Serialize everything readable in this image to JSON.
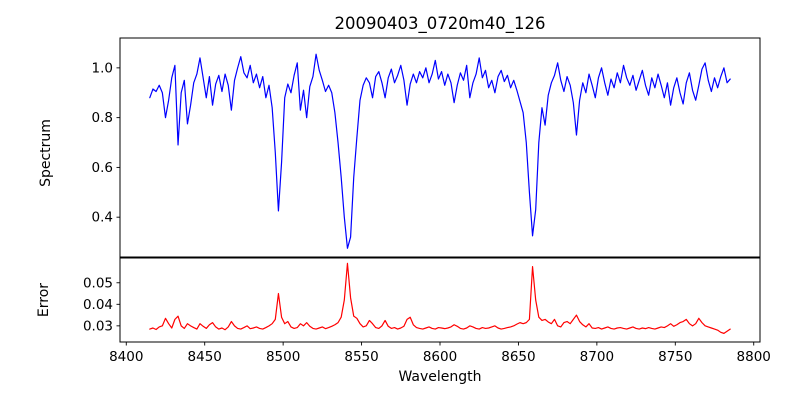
{
  "chart_data": {
    "type": "line",
    "title": "20090403_0720m40_126",
    "xlabel": "Wavelength",
    "grid": false,
    "legend": "none",
    "background": "#ffffff",
    "axis_color": "#000000",
    "xlim": [
      8396,
      8804
    ],
    "xticks": [
      {
        "v": 8400,
        "label": "8400"
      },
      {
        "v": 8450,
        "label": "8450"
      },
      {
        "v": 8500,
        "label": "8500"
      },
      {
        "v": 8550,
        "label": "8550"
      },
      {
        "v": 8600,
        "label": "8600"
      },
      {
        "v": 8650,
        "label": "8650"
      },
      {
        "v": 8700,
        "label": "8700"
      },
      {
        "v": 8750,
        "label": "8750"
      },
      {
        "v": 8800,
        "label": "8800"
      }
    ],
    "absorption_lines": [
      {
        "wavelength": 8497,
        "min_flux": 0.425,
        "error_peak": 0.045
      },
      {
        "wavelength": 8541,
        "min_flux": 0.275,
        "error_peak": 0.059
      },
      {
        "wavelength": 8659,
        "min_flux": 0.325,
        "error_peak": 0.0575
      }
    ],
    "panels": [
      {
        "ylabel": "Spectrum",
        "ylim": [
          0.24,
          1.12
        ],
        "yticks": [
          {
            "v": 0.4,
            "label": "0.4"
          },
          {
            "v": 0.6,
            "label": "0.6"
          },
          {
            "v": 0.8,
            "label": "0.8"
          },
          {
            "v": 1.0,
            "label": "1.0"
          }
        ],
        "axes_rect": [
          120,
          38,
          640,
          219
        ],
        "series": {
          "name": "spectrum",
          "color": "#0000ff",
          "x_start": 8415,
          "x_step": 2,
          "values": [
            0.88,
            0.915,
            0.905,
            0.93,
            0.9,
            0.8,
            0.87,
            0.96,
            1.01,
            0.69,
            0.9,
            0.95,
            0.775,
            0.85,
            0.94,
            0.975,
            1.04,
            0.96,
            0.88,
            0.965,
            0.85,
            0.935,
            0.97,
            0.905,
            0.975,
            0.93,
            0.83,
            0.95,
            1.0,
            1.045,
            0.98,
            0.96,
            1.01,
            0.94,
            0.975,
            0.92,
            0.965,
            0.88,
            0.93,
            0.84,
            0.66,
            0.425,
            0.62,
            0.88,
            0.935,
            0.9,
            0.97,
            1.02,
            0.83,
            0.91,
            0.8,
            0.925,
            0.965,
            1.055,
            0.99,
            0.95,
            0.905,
            0.93,
            0.9,
            0.82,
            0.7,
            0.56,
            0.4,
            0.275,
            0.32,
            0.56,
            0.72,
            0.87,
            0.93,
            0.96,
            0.94,
            0.88,
            0.965,
            0.985,
            0.94,
            0.88,
            0.96,
            0.995,
            0.94,
            0.97,
            1.01,
            0.95,
            0.85,
            0.935,
            0.975,
            0.94,
            0.985,
            0.96,
            1.0,
            0.94,
            0.975,
            1.03,
            0.955,
            0.985,
            0.93,
            0.975,
            0.94,
            0.86,
            0.93,
            0.98,
            0.95,
            1.01,
            0.88,
            0.94,
            0.975,
            1.04,
            0.96,
            0.99,
            0.92,
            0.95,
            0.9,
            0.965,
            0.99,
            0.945,
            0.97,
            0.92,
            0.95,
            0.91,
            0.865,
            0.82,
            0.7,
            0.5,
            0.325,
            0.43,
            0.7,
            0.84,
            0.77,
            0.89,
            0.94,
            0.97,
            1.02,
            0.95,
            0.905,
            0.965,
            0.93,
            0.86,
            0.73,
            0.87,
            0.94,
            0.9,
            0.975,
            0.93,
            0.88,
            0.96,
            1.0,
            0.94,
            0.89,
            0.955,
            0.92,
            0.98,
            0.94,
            1.01,
            0.96,
            0.93,
            0.97,
            0.91,
            0.95,
            0.99,
            0.93,
            0.89,
            0.96,
            0.92,
            0.975,
            0.93,
            0.88,
            0.94,
            0.85,
            0.92,
            0.96,
            0.9,
            0.855,
            0.94,
            0.98,
            0.91,
            0.87,
            0.93,
            0.995,
            1.02,
            0.95,
            0.905,
            0.96,
            0.92,
            0.965,
            1.0,
            0.94,
            0.955
          ]
        }
      },
      {
        "ylabel": "Error",
        "ylim": [
          0.0225,
          0.0615
        ],
        "yticks": [
          {
            "v": 0.03,
            "label": "0.03"
          },
          {
            "v": 0.04,
            "label": "0.04"
          },
          {
            "v": 0.05,
            "label": "0.05"
          }
        ],
        "axes_rect": [
          120,
          258,
          640,
          84
        ],
        "series": {
          "name": "error",
          "color": "#ff0000",
          "x_start": 8415,
          "x_step": 2,
          "values": [
            0.0285,
            0.029,
            0.0283,
            0.0295,
            0.03,
            0.0335,
            0.031,
            0.029,
            0.033,
            0.0345,
            0.03,
            0.0288,
            0.031,
            0.03,
            0.0292,
            0.0285,
            0.031,
            0.0298,
            0.0288,
            0.0305,
            0.0315,
            0.0295,
            0.0285,
            0.029,
            0.0282,
            0.0295,
            0.032,
            0.03,
            0.0288,
            0.0285,
            0.0292,
            0.03,
            0.0287,
            0.029,
            0.0295,
            0.0288,
            0.0285,
            0.0292,
            0.03,
            0.031,
            0.033,
            0.045,
            0.034,
            0.031,
            0.032,
            0.0295,
            0.0288,
            0.0292,
            0.031,
            0.03,
            0.0315,
            0.0298,
            0.0288,
            0.0285,
            0.029,
            0.0295,
            0.0287,
            0.0292,
            0.0298,
            0.0305,
            0.0315,
            0.034,
            0.042,
            0.059,
            0.043,
            0.0345,
            0.0335,
            0.031,
            0.0295,
            0.03,
            0.0325,
            0.031,
            0.0292,
            0.0288,
            0.03,
            0.0325,
            0.0298,
            0.0288,
            0.0292,
            0.0285,
            0.029,
            0.0298,
            0.033,
            0.034,
            0.0305,
            0.0292,
            0.0288,
            0.0285,
            0.029,
            0.0295,
            0.0288,
            0.0285,
            0.0292,
            0.029,
            0.0287,
            0.029,
            0.0295,
            0.0305,
            0.0298,
            0.0288,
            0.0285,
            0.029,
            0.03,
            0.0295,
            0.0288,
            0.0285,
            0.0292,
            0.0288,
            0.029,
            0.0295,
            0.03,
            0.029,
            0.0285,
            0.0288,
            0.0292,
            0.0295,
            0.03,
            0.0308,
            0.0315,
            0.031,
            0.0315,
            0.033,
            0.0575,
            0.042,
            0.034,
            0.0325,
            0.033,
            0.0318,
            0.031,
            0.033,
            0.03,
            0.0295,
            0.0315,
            0.032,
            0.031,
            0.033,
            0.035,
            0.032,
            0.0305,
            0.0295,
            0.031,
            0.029,
            0.0288,
            0.0292,
            0.0285,
            0.029,
            0.0295,
            0.0288,
            0.0285,
            0.029,
            0.0292,
            0.0288,
            0.0285,
            0.029,
            0.0295,
            0.0288,
            0.0285,
            0.029,
            0.0287,
            0.0292,
            0.0288,
            0.0285,
            0.029,
            0.0295,
            0.0292,
            0.03,
            0.031,
            0.0298,
            0.0305,
            0.0315,
            0.032,
            0.033,
            0.031,
            0.03,
            0.031,
            0.0335,
            0.0315,
            0.03,
            0.0295,
            0.029,
            0.0285,
            0.028,
            0.027,
            0.0265,
            0.0275,
            0.0285
          ]
        }
      }
    ]
  }
}
